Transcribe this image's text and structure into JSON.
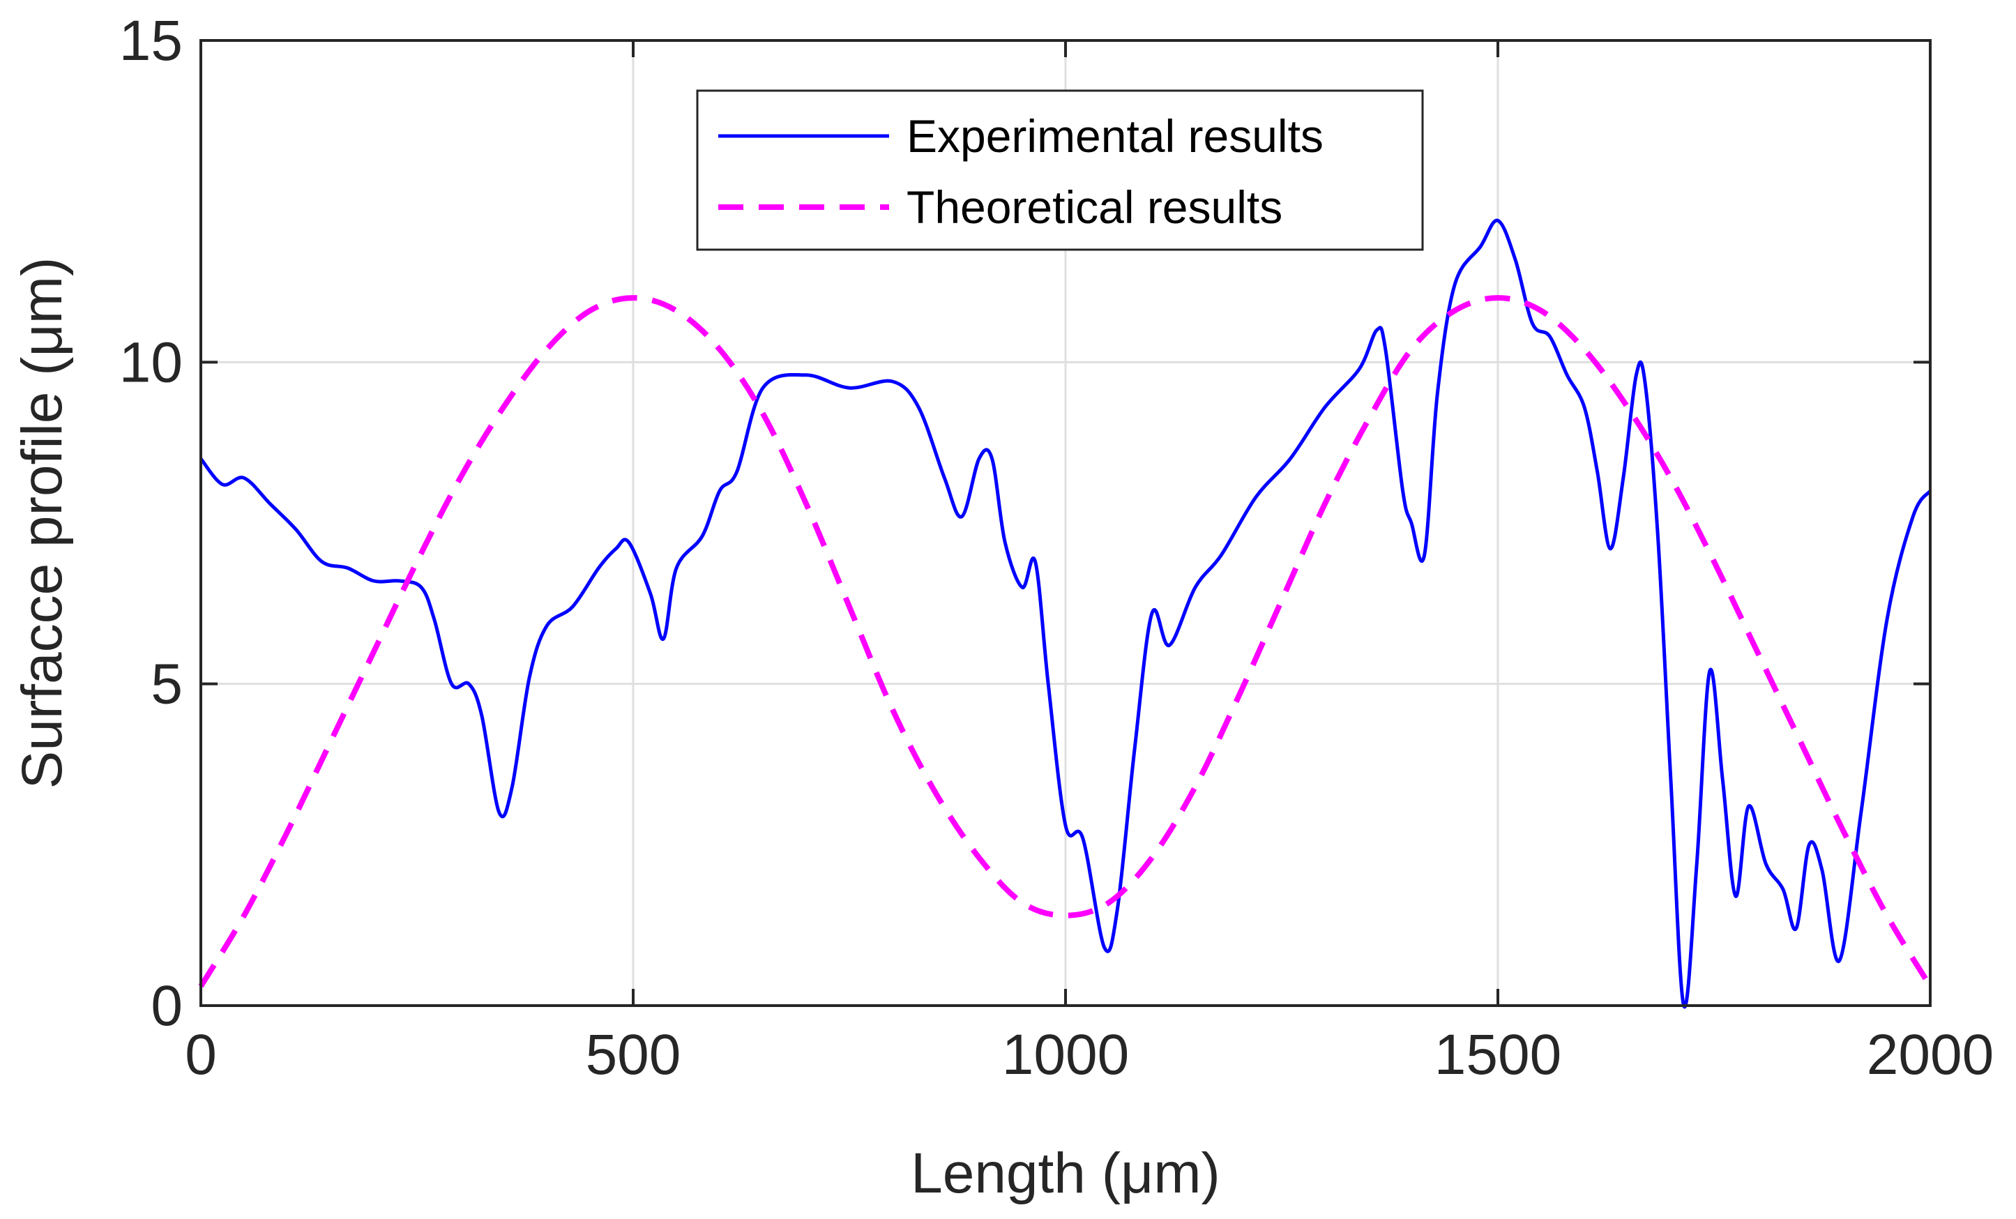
{
  "chart_data": {
    "type": "line",
    "title": "",
    "xlabel": "Length (μm)",
    "ylabel": "Surfacce profile (μm)",
    "xlim": [
      0,
      2000
    ],
    "ylim": [
      0,
      15
    ],
    "xticks": [
      0,
      500,
      1000,
      1500,
      2000
    ],
    "yticks": [
      0,
      5,
      10,
      15
    ],
    "xtick_labels": [
      "0",
      "500",
      "1000",
      "1500",
      "2000"
    ],
    "ytick_labels": [
      "0",
      "5",
      "10",
      "15"
    ],
    "grid": true,
    "legend_position": "top-center",
    "series": [
      {
        "name": "Experimental results",
        "color": "#0000ff",
        "style": "solid",
        "x": [
          0,
          25,
          50,
          80,
          110,
          140,
          170,
          200,
          230,
          255,
          270,
          290,
          310,
          325,
          345,
          360,
          380,
          400,
          430,
          460,
          480,
          495,
          520,
          535,
          550,
          580,
          600,
          620,
          650,
          700,
          750,
          800,
          830,
          860,
          880,
          900,
          915,
          930,
          950,
          965,
          980,
          1000,
          1020,
          1045,
          1060,
          1080,
          1100,
          1120,
          1150,
          1180,
          1220,
          1260,
          1300,
          1340,
          1360,
          1370,
          1390,
          1400,
          1415,
          1430,
          1450,
          1480,
          1500,
          1520,
          1540,
          1560,
          1580,
          1600,
          1615,
          1630,
          1645,
          1660,
          1670,
          1685,
          1700,
          1715,
          1730,
          1745,
          1760,
          1775,
          1790,
          1810,
          1830,
          1845,
          1860,
          1875,
          1895,
          1920,
          1950,
          1980,
          2000
        ],
        "y": [
          8.5,
          8.1,
          8.2,
          7.8,
          7.4,
          6.9,
          6.8,
          6.6,
          6.6,
          6.5,
          6.0,
          5.0,
          5.0,
          4.5,
          3.0,
          3.4,
          5.1,
          5.9,
          6.2,
          6.8,
          7.1,
          7.2,
          6.4,
          5.7,
          6.8,
          7.3,
          8.0,
          8.3,
          9.6,
          9.8,
          9.6,
          9.7,
          9.3,
          8.2,
          7.6,
          8.5,
          8.5,
          7.2,
          6.5,
          6.9,
          5.0,
          2.8,
          2.6,
          0.9,
          1.5,
          4.0,
          6.1,
          5.6,
          6.5,
          7.0,
          7.9,
          8.5,
          9.3,
          9.9,
          10.5,
          10.2,
          8.0,
          7.5,
          7.0,
          9.5,
          11.2,
          11.8,
          12.2,
          11.6,
          10.6,
          10.4,
          9.8,
          9.3,
          8.3,
          7.1,
          8.2,
          9.8,
          9.7,
          7.3,
          3.5,
          0.0,
          2.2,
          5.2,
          3.5,
          1.7,
          3.1,
          2.2,
          1.8,
          1.2,
          2.5,
          2.1,
          0.7,
          3.0,
          6.0,
          7.6,
          8.0
        ]
      },
      {
        "name": "Theoretical results",
        "color": "#ff00ff",
        "style": "dashed",
        "x": [
          0,
          50,
          100,
          150,
          200,
          250,
          300,
          350,
          400,
          450,
          500,
          550,
          600,
          650,
          700,
          750,
          800,
          850,
          900,
          950,
          1000,
          1050,
          1100,
          1150,
          1200,
          1250,
          1300,
          1350,
          1400,
          1450,
          1500,
          1550,
          1600,
          1650,
          1700,
          1750,
          1800,
          1850,
          1900,
          1950,
          2000
        ],
        "y": [
          0.3,
          1.4,
          2.7,
          4.1,
          5.5,
          6.9,
          8.2,
          9.3,
          10.2,
          10.8,
          11.0,
          10.8,
          10.2,
          9.2,
          7.8,
          6.2,
          4.6,
          3.3,
          2.3,
          1.6,
          1.4,
          1.6,
          2.3,
          3.4,
          4.8,
          6.3,
          7.8,
          9.1,
          10.2,
          10.8,
          11.0,
          10.8,
          10.2,
          9.3,
          8.2,
          6.9,
          5.5,
          4.1,
          2.7,
          1.4,
          0.3
        ]
      }
    ]
  }
}
